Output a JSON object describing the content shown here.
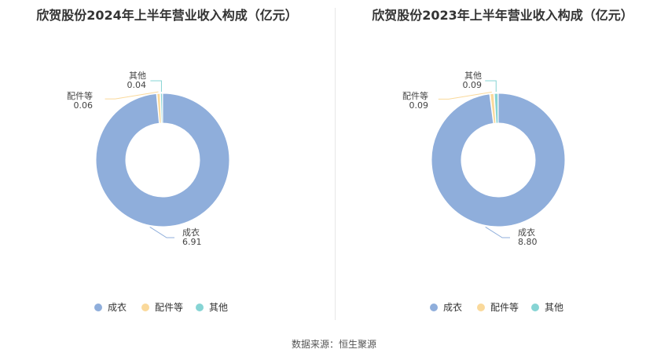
{
  "colors": {
    "成衣": "#8faedb",
    "配件等": "#fad99b",
    "其他": "#86d4d4"
  },
  "source": "数据来源：恒生聚源",
  "chart_data": [
    {
      "type": "pie",
      "title": "欣贺股份2024年上半年营业收入构成（亿元）",
      "categories": [
        "成衣",
        "配件等",
        "其他"
      ],
      "values": [
        6.91,
        0.06,
        0.04
      ],
      "value_labels": [
        "6.91",
        "0.06",
        "0.04"
      ],
      "legend": [
        "成衣",
        "配件等",
        "其他"
      ],
      "legend_position": "bottom"
    },
    {
      "type": "pie",
      "title": "欣贺股份2023年上半年营业收入构成（亿元）",
      "categories": [
        "成衣",
        "配件等",
        "其他"
      ],
      "values": [
        8.8,
        0.09,
        0.09
      ],
      "value_labels": [
        "8.80",
        "0.09",
        "0.09"
      ],
      "legend": [
        "成衣",
        "配件等",
        "其他"
      ],
      "legend_position": "bottom"
    }
  ]
}
